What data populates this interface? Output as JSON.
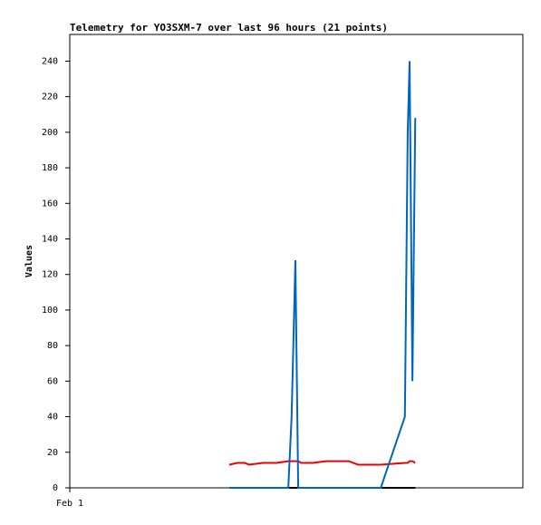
{
  "chart_data": {
    "type": "line",
    "title": "Telemetry for YO3SXM-7 over last 96 hours (21 points)",
    "y_label": "Values",
    "x": [
      33.8,
      35.5,
      37.1,
      38.0,
      40.9,
      43.8,
      46.3,
      47.0,
      47.8,
      48.4,
      49.0,
      51.5,
      54.3,
      59.1,
      61.1,
      65.9,
      71.0,
      71.6,
      72.0,
      72.6,
      73.2
    ],
    "series": [
      {
        "color": "#000000",
        "values": [
          0,
          0,
          0,
          0,
          0,
          0,
          0,
          0,
          0,
          0,
          0,
          0,
          0,
          0,
          0,
          0,
          0,
          0,
          0,
          0,
          0
        ]
      },
      {
        "color": "#ee0000",
        "values": [
          13,
          14,
          14,
          13,
          14,
          14,
          15,
          15,
          15,
          15,
          14,
          14,
          15,
          15,
          13,
          13,
          14,
          14,
          15,
          15,
          14
        ]
      },
      {
        "color": "#0066bb",
        "values": [
          0,
          0,
          0,
          0,
          0,
          0,
          0,
          40,
          128,
          0,
          0,
          0,
          0,
          0,
          0,
          0,
          40,
          200,
          240,
          60,
          208
        ]
      }
    ],
    "xlim": [
      0,
      96
    ],
    "xticks": [
      {
        "value": 0,
        "label": "Feb 1"
      }
    ],
    "ylim": [
      0,
      255
    ],
    "yticks": [
      0,
      20,
      40,
      60,
      80,
      100,
      120,
      140,
      160,
      180,
      200,
      220,
      240
    ]
  }
}
